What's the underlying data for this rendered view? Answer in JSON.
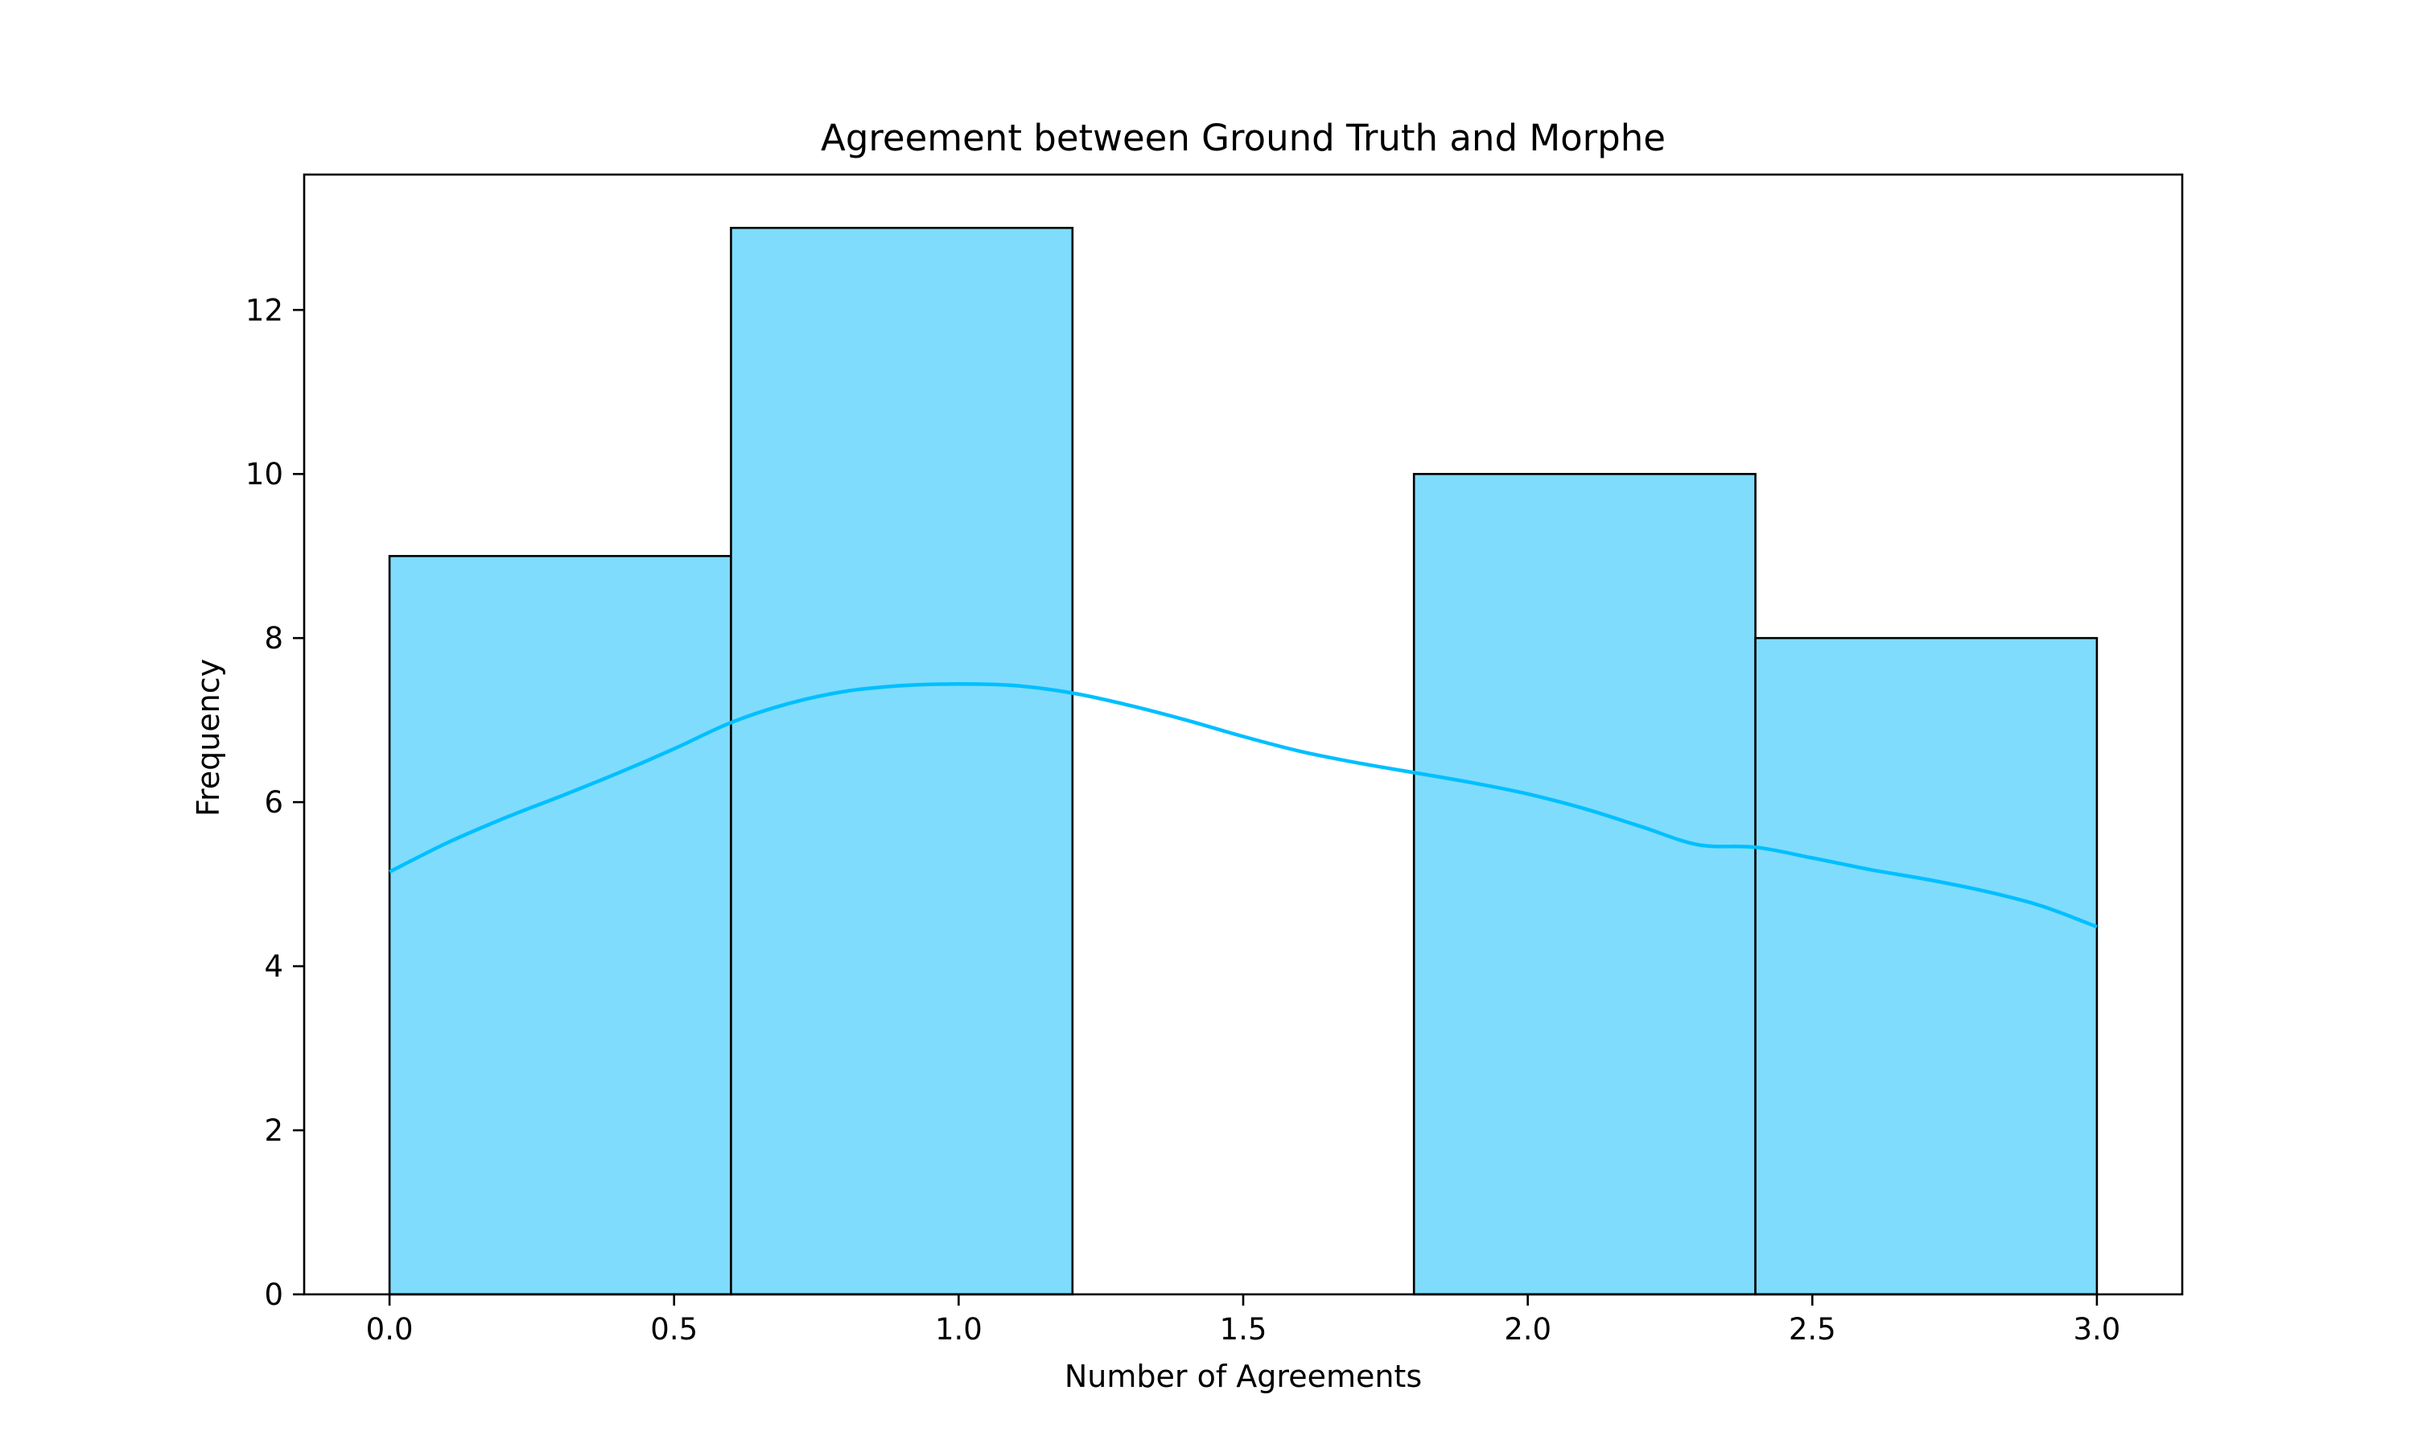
{
  "chart_data": {
    "type": "bar",
    "title": "Agreement between Ground Truth and Morphe",
    "xlabel": "Number of Agreements",
    "ylabel": "Frequency",
    "xlim": [
      -0.15,
      3.15
    ],
    "ylim": [
      0,
      13.65
    ],
    "x_ticks": [
      0.0,
      0.5,
      1.0,
      1.5,
      2.0,
      2.5,
      3.0
    ],
    "x_tick_labels": [
      "0.0",
      "0.5",
      "1.0",
      "1.5",
      "2.0",
      "2.5",
      "3.0"
    ],
    "y_ticks": [
      0,
      2,
      4,
      6,
      8,
      10,
      12
    ],
    "y_tick_labels": [
      "0",
      "2",
      "4",
      "6",
      "8",
      "10",
      "12"
    ],
    "grid": false,
    "bins": [
      {
        "start": 0.0,
        "end": 0.6,
        "value": 9
      },
      {
        "start": 0.6,
        "end": 1.2,
        "value": 13
      },
      {
        "start": 1.2,
        "end": 1.8,
        "value": 0
      },
      {
        "start": 1.8,
        "end": 2.4,
        "value": 10
      },
      {
        "start": 2.4,
        "end": 3.0,
        "value": 8
      }
    ],
    "kde": {
      "x": [
        0.0,
        0.1,
        0.2,
        0.3,
        0.4,
        0.5,
        0.6,
        0.7,
        0.8,
        0.9,
        1.0,
        1.1,
        1.2,
        1.3,
        1.4,
        1.5,
        1.6,
        1.7,
        1.8,
        1.9,
        2.0,
        2.1,
        2.2,
        2.3,
        2.4,
        2.5,
        2.6,
        2.7,
        2.8,
        2.9,
        3.0
      ],
      "y": [
        5.15,
        5.5,
        5.8,
        6.07,
        6.35,
        6.65,
        6.97,
        7.2,
        7.35,
        7.42,
        7.44,
        7.42,
        7.33,
        7.18,
        7.0,
        6.8,
        6.62,
        6.48,
        6.36,
        6.24,
        6.1,
        5.92,
        5.7,
        5.48,
        5.45,
        5.32,
        5.18,
        5.06,
        4.92,
        4.74,
        4.48
      ]
    },
    "colors": {
      "bar_fill": "#7fdcfc",
      "bar_edge": "#000000",
      "kde_line": "#00bfff"
    }
  }
}
